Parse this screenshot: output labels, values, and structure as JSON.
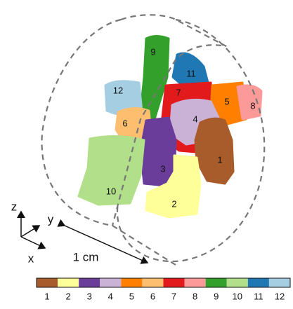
{
  "segments": [
    {
      "label": "1",
      "color": "#a95c2b"
    },
    {
      "label": "2",
      "color": "#ffff99"
    },
    {
      "label": "3",
      "color": "#6a3d9a"
    },
    {
      "label": "4",
      "color": "#cab2d6"
    },
    {
      "label": "5",
      "color": "#ff7f00"
    },
    {
      "label": "6",
      "color": "#fdbf6f"
    },
    {
      "label": "7",
      "color": "#e31a1c"
    },
    {
      "label": "8",
      "color": "#fb9a99"
    },
    {
      "label": "9",
      "color": "#33a02c"
    },
    {
      "label": "10",
      "color": "#b2df8a"
    },
    {
      "label": "11",
      "color": "#1f78b4"
    },
    {
      "label": "12",
      "color": "#a6cee3"
    }
  ],
  "axes": {
    "z": "z",
    "y": "y",
    "x": "x"
  },
  "scale_bar": "1 cm"
}
